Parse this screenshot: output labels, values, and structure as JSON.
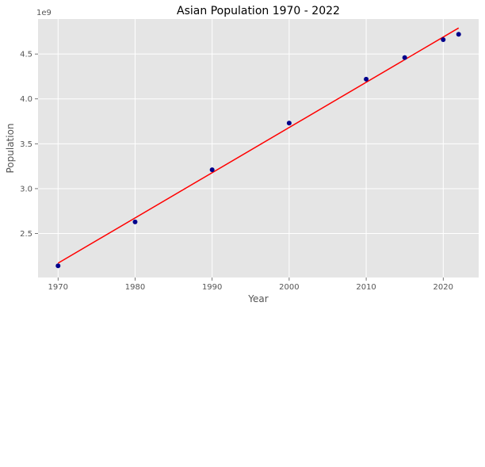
{
  "chart_data": {
    "type": "scatter",
    "title": "Asian Population 1970 - 2022",
    "xlabel": "Year",
    "ylabel": "Population",
    "y_offset_label": "1e9",
    "grid": true,
    "xlim": [
      1967.4,
      2024.6
    ],
    "ylim": [
      2.01,
      4.89
    ],
    "x_ticks": [
      1970,
      1980,
      1990,
      2000,
      2010,
      2020
    ],
    "x_tick_labels": [
      "1970",
      "1980",
      "1990",
      "2000",
      "2010",
      "2020"
    ],
    "y_ticks": [
      2.5,
      3.0,
      3.5,
      4.0,
      4.5
    ],
    "y_tick_labels": [
      "2.5",
      "3.0",
      "3.5",
      "4.0",
      "4.5"
    ],
    "series": [
      {
        "kind": "scatter",
        "color": "#00008b",
        "points": [
          {
            "x": 1970,
            "y": 2.14
          },
          {
            "x": 1980,
            "y": 2.63
          },
          {
            "x": 1990,
            "y": 3.21
          },
          {
            "x": 2000,
            "y": 3.73
          },
          {
            "x": 2010,
            "y": 4.22
          },
          {
            "x": 2015,
            "y": 4.46
          },
          {
            "x": 2020,
            "y": 4.66
          },
          {
            "x": 2022,
            "y": 4.72
          }
        ]
      },
      {
        "kind": "line",
        "color": "#ff0000",
        "points": [
          {
            "x": 1970,
            "y": 2.17
          },
          {
            "x": 2022,
            "y": 4.79
          }
        ]
      }
    ],
    "colors": {
      "plot_background": "#e5e5e5",
      "grid": "#ffffff",
      "text": "#555555"
    }
  }
}
